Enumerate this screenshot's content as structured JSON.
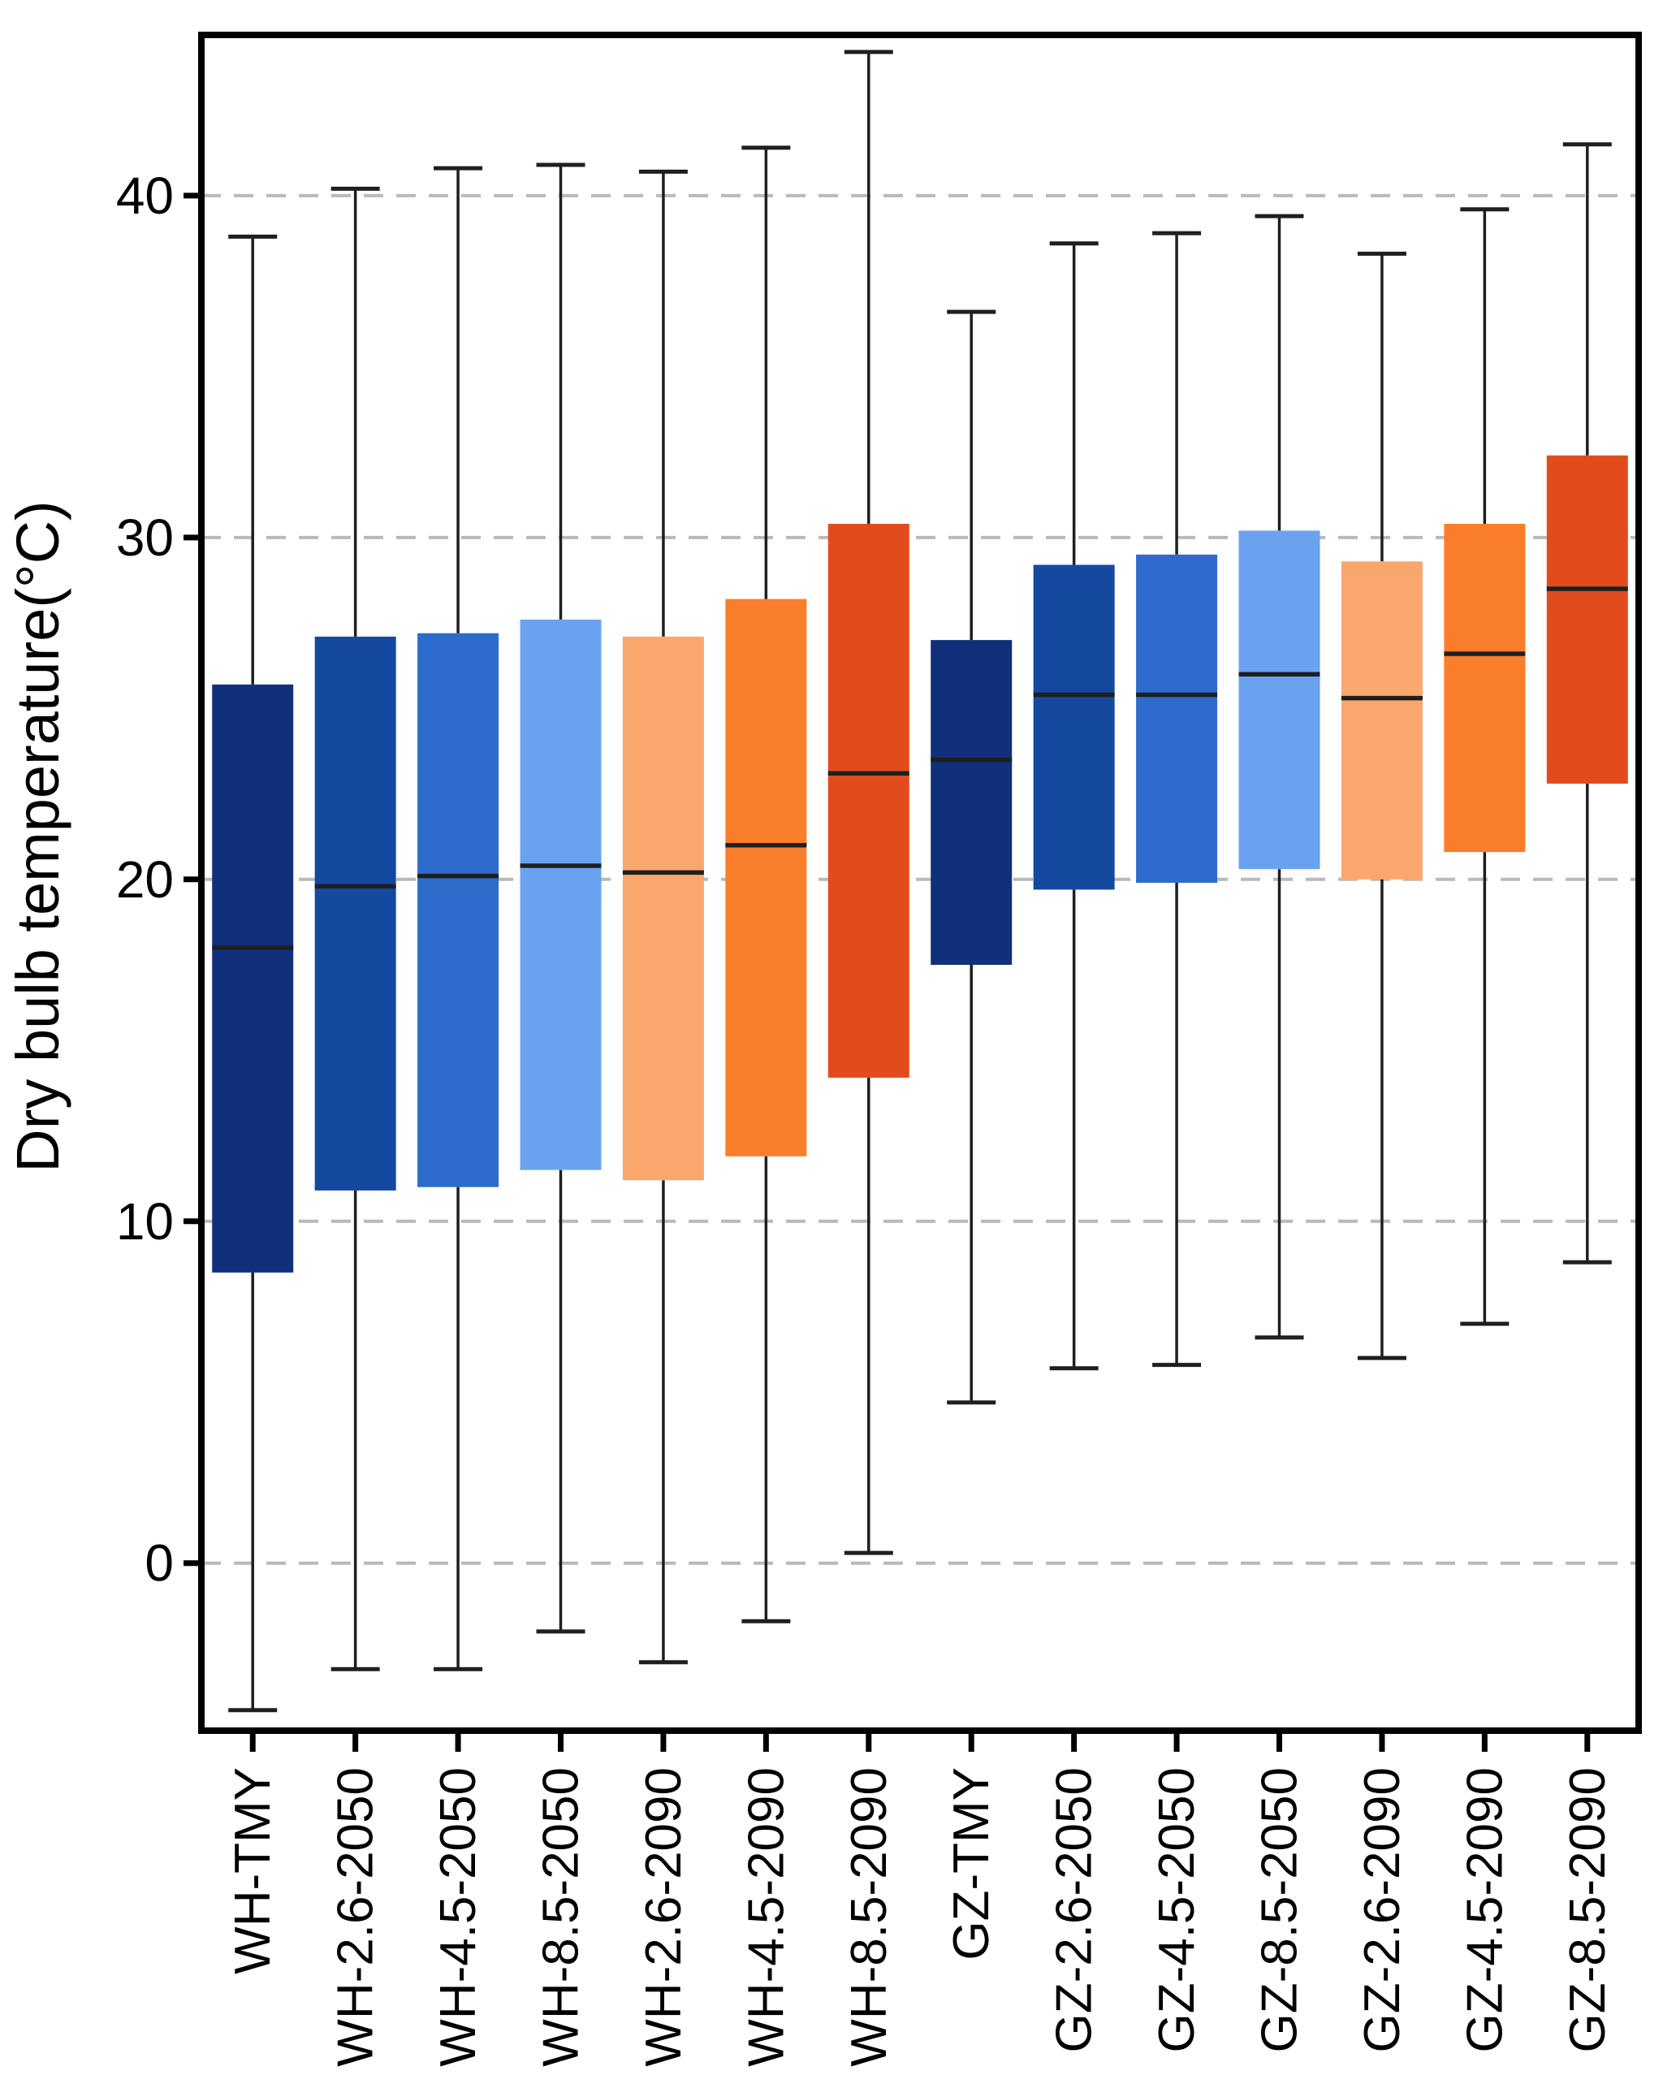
{
  "figure": {
    "y_axis_title": "Dry bulb temperature(°C)"
  },
  "chart_data": {
    "type": "boxplot",
    "title": "",
    "xlabel": "",
    "ylabel": "Dry bulb temperature(°C)",
    "ylim": [
      -4.9,
      44.7
    ],
    "yticks": [
      0,
      10,
      20,
      30,
      40
    ],
    "grid": "horizontal dashed gridlines at each ytick",
    "legend": "none",
    "categories": [
      "WH-TMY",
      "WH-2.6-2050",
      "WH-4.5-2050",
      "WH-8.5-2050",
      "WH-2.6-2090",
      "WH-4.5-2090",
      "WH-8.5-2090",
      "GZ-TMY",
      "GZ-2.6-2050",
      "GZ-4.5-2050",
      "GZ-8.5-2050",
      "GZ-2.6-2090",
      "GZ-4.5-2090",
      "GZ-8.5-2090"
    ],
    "palette_cycle": [
      "#11307c",
      "#14499f",
      "#2d6ccd",
      "#6ba2f0",
      "#f9a76c",
      "#fa7d2b",
      "#e24c1d"
    ],
    "boxes": [
      {
        "label": "WH-TMY",
        "color": "#11307c",
        "whisker_low": -4.3,
        "q1": 8.5,
        "median": 18.0,
        "q3": 25.7,
        "whisker_high": 38.8
      },
      {
        "label": "WH-2.6-2050",
        "color": "#14499f",
        "whisker_low": -3.1,
        "q1": 10.9,
        "median": 19.8,
        "q3": 27.1,
        "whisker_high": 40.2
      },
      {
        "label": "WH-4.5-2050",
        "color": "#2d6ccd",
        "whisker_low": -3.1,
        "q1": 11.0,
        "median": 20.1,
        "q3": 27.2,
        "whisker_high": 40.8
      },
      {
        "label": "WH-8.5-2050",
        "color": "#6ba2f0",
        "whisker_low": -2.0,
        "q1": 11.5,
        "median": 20.4,
        "q3": 27.6,
        "whisker_high": 40.9
      },
      {
        "label": "WH-2.6-2090",
        "color": "#f9a76c",
        "whisker_low": -2.9,
        "q1": 11.2,
        "median": 20.2,
        "q3": 27.1,
        "whisker_high": 40.7
      },
      {
        "label": "WH-4.5-2090",
        "color": "#fa7d2b",
        "whisker_low": -1.7,
        "q1": 11.9,
        "median": 21.0,
        "q3": 28.2,
        "whisker_high": 41.4
      },
      {
        "label": "WH-8.5-2090",
        "color": "#e24c1d",
        "whisker_low": 0.3,
        "q1": 14.2,
        "median": 23.1,
        "q3": 30.4,
        "whisker_high": 44.2
      },
      {
        "label": "GZ-TMY",
        "color": "#11307c",
        "whisker_low": 4.7,
        "q1": 17.5,
        "median": 23.5,
        "q3": 27.0,
        "whisker_high": 36.6
      },
      {
        "label": "GZ-2.6-2050",
        "color": "#14499f",
        "whisker_low": 5.7,
        "q1": 19.7,
        "median": 25.4,
        "q3": 29.2,
        "whisker_high": 38.6
      },
      {
        "label": "GZ-4.5-2050",
        "color": "#2d6ccd",
        "whisker_low": 5.8,
        "q1": 19.9,
        "median": 25.4,
        "q3": 29.5,
        "whisker_high": 38.9
      },
      {
        "label": "GZ-8.5-2050",
        "color": "#6ba2f0",
        "whisker_low": 6.6,
        "q1": 20.3,
        "median": 26.0,
        "q3": 30.2,
        "whisker_high": 39.4
      },
      {
        "label": "GZ-2.6-2090",
        "color": "#f9a76c",
        "whisker_low": 6.0,
        "q1": 20.0,
        "median": 25.3,
        "q3": 29.3,
        "whisker_high": 38.3
      },
      {
        "label": "GZ-4.5-2090",
        "color": "#fa7d2b",
        "whisker_low": 7.0,
        "q1": 20.8,
        "median": 26.6,
        "q3": 30.4,
        "whisker_high": 39.6
      },
      {
        "label": "GZ-8.5-2090",
        "color": "#e24c1d",
        "whisker_low": 8.8,
        "q1": 22.8,
        "median": 28.5,
        "q3": 32.4,
        "whisker_high": 41.5
      }
    ]
  },
  "style": {
    "background": "#ffffff",
    "axis_color": "#000000",
    "grid_color": "#b9b9b9",
    "median_color": "#1f1f1f",
    "whisker_color": "#1f1f1f",
    "label_color": "#000000"
  }
}
